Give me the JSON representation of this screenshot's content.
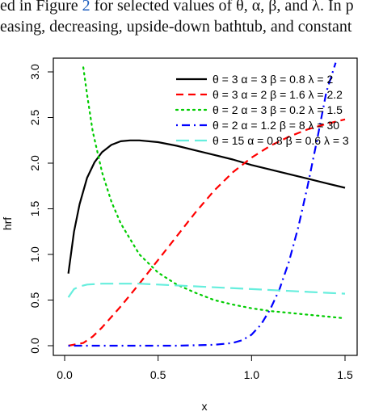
{
  "caption": {
    "line1_prefix": "ed in Figure ",
    "line1_figref": "2",
    "line1_suffix": " for selected values of θ, α, β, and λ. In p",
    "line2": "easing, decreasing, upside-down bathtub, and constant"
  },
  "chart_data": {
    "type": "line",
    "xlabel": "x",
    "ylabel": "hrf",
    "xlim": [
      0.0,
      1.5
    ],
    "ylim": [
      0.0,
      3.0
    ],
    "xticks": [
      "0.0",
      "0.5",
      "1.0",
      "1.5"
    ],
    "yticks": [
      "0.0",
      "0.5",
      "1.0",
      "1.5",
      "2.0",
      "2.5",
      "3.0"
    ],
    "grid": false,
    "legend_position": "top-right",
    "series": [
      {
        "name": "θ = 3  α = 3  β = 0.8  λ = 2",
        "color": "#000000",
        "style": "solid",
        "x": [
          0.02,
          0.05,
          0.08,
          0.12,
          0.16,
          0.2,
          0.25,
          0.3,
          0.35,
          0.4,
          0.5,
          0.6,
          0.7,
          0.8,
          0.9,
          1.0,
          1.1,
          1.2,
          1.3,
          1.4,
          1.5
        ],
        "y": [
          0.79,
          1.25,
          1.55,
          1.84,
          2.01,
          2.12,
          2.2,
          2.24,
          2.25,
          2.25,
          2.23,
          2.19,
          2.14,
          2.09,
          2.04,
          1.98,
          1.93,
          1.88,
          1.83,
          1.78,
          1.73
        ]
      },
      {
        "name": "θ = 3  α = 2  β = 1.6  λ = 2.2",
        "color": "#ff0000",
        "style": "dashed",
        "x": [
          0.02,
          0.1,
          0.15,
          0.2,
          0.3,
          0.4,
          0.5,
          0.6,
          0.7,
          0.8,
          0.9,
          1.0,
          1.1,
          1.2,
          1.3,
          1.4,
          1.5
        ],
        "y": [
          0.0,
          0.03,
          0.1,
          0.2,
          0.43,
          0.68,
          0.94,
          1.2,
          1.46,
          1.7,
          1.9,
          2.06,
          2.19,
          2.29,
          2.37,
          2.43,
          2.48
        ]
      },
      {
        "name": "θ = 2  α = 3  β = 0.2  λ = 1.5",
        "color": "#00cc00",
        "style": "dotted",
        "x": [
          0.1,
          0.12,
          0.15,
          0.2,
          0.25,
          0.3,
          0.4,
          0.5,
          0.6,
          0.7,
          0.8,
          0.9,
          1.0,
          1.1,
          1.2,
          1.3,
          1.4,
          1.5
        ],
        "y": [
          3.05,
          2.75,
          2.35,
          1.9,
          1.58,
          1.34,
          1.0,
          0.8,
          0.67,
          0.58,
          0.5,
          0.45,
          0.41,
          0.38,
          0.36,
          0.34,
          0.32,
          0.3
        ]
      },
      {
        "name": "θ = 2  α = 1.2  β = 8  λ = 30",
        "color": "#0000ff",
        "style": "dotdash",
        "x": [
          0.02,
          0.2,
          0.4,
          0.6,
          0.8,
          0.9,
          0.95,
          1.0,
          1.05,
          1.1,
          1.15,
          1.2,
          1.25,
          1.3,
          1.35,
          1.4,
          1.45
        ],
        "y": [
          0.0,
          0.0,
          0.0,
          0.0,
          0.01,
          0.03,
          0.06,
          0.12,
          0.23,
          0.4,
          0.62,
          0.92,
          1.3,
          1.75,
          2.25,
          2.78,
          3.1
        ]
      },
      {
        "name": "θ = 15  α = 0.8  β = 0.6  λ = 3",
        "color": "#66eedd",
        "style": "longdash",
        "x": [
          0.02,
          0.05,
          0.08,
          0.12,
          0.2,
          0.3,
          0.4,
          0.5,
          0.6,
          0.8,
          1.0,
          1.2,
          1.4,
          1.5
        ],
        "y": [
          0.53,
          0.62,
          0.65,
          0.67,
          0.68,
          0.68,
          0.68,
          0.67,
          0.66,
          0.64,
          0.62,
          0.6,
          0.58,
          0.57
        ]
      }
    ]
  }
}
